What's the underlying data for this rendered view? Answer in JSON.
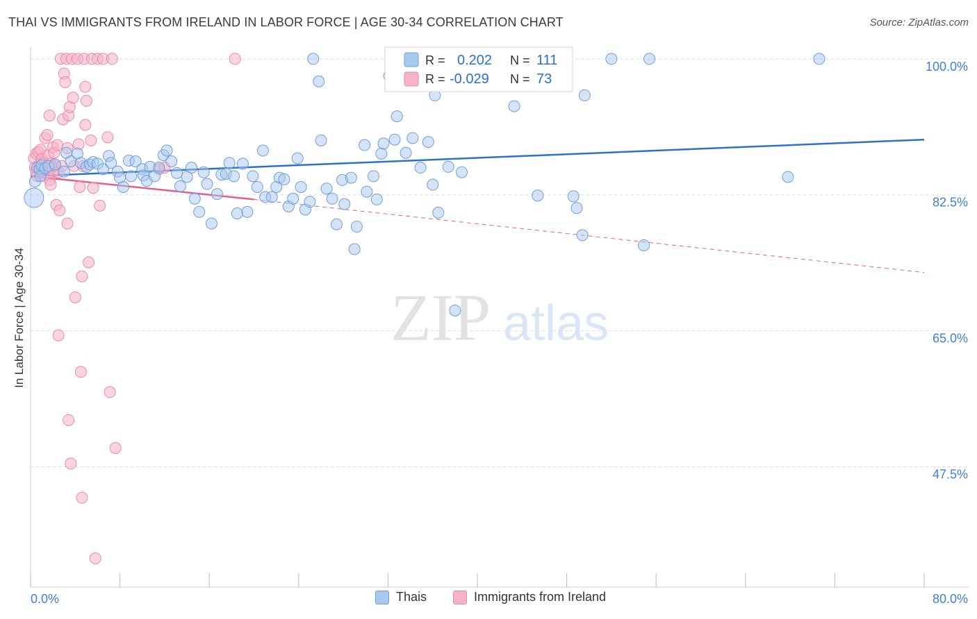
{
  "title": "THAI VS IMMIGRANTS FROM IRELAND IN LABOR FORCE | AGE 30-34 CORRELATION CHART",
  "source": "Source: ZipAtlas.com",
  "watermark": {
    "zip": "ZIP",
    "atlas": "atlas"
  },
  "stats": [
    {
      "r_label": "R =",
      "r": "0.202",
      "n_label": "N =",
      "n": "111"
    },
    {
      "r_label": "R =",
      "r": "-0.029",
      "n_label": "N =",
      "n": "73"
    }
  ],
  "colors": {
    "blue_fill": "#a9c8f0",
    "blue_stroke": "#6e9fd9",
    "blue_line": "#2b6fd0",
    "pink_fill": "#f6b3c8",
    "pink_stroke": "#e88aa9",
    "pink_line": "#e0608d",
    "tick_text": "#3d7fd6",
    "grid": "#dddddd"
  },
  "chart_data": {
    "type": "scatter",
    "title": "THAI VS IMMIGRANTS FROM IRELAND IN LABOR FORCE | AGE 30-34 CORRELATION CHART",
    "xlabel": "",
    "ylabel": "In Labor Force | Age 30-34",
    "xlim": [
      0,
      80
    ],
    "ylim": [
      32,
      101.5
    ],
    "x_tick_labels": [
      "0.0%",
      "80.0%"
    ],
    "y_ticks": [
      47.5,
      65.0,
      82.5,
      100.0
    ],
    "y_tick_labels": [
      "47.5%",
      "65.0%",
      "82.5%",
      "100.0%"
    ],
    "grid": true,
    "legend_position": "bottom-center",
    "series": [
      {
        "name": "Thais",
        "r": 0.202,
        "n": 111,
        "trend": {
          "x": [
            0,
            80
          ],
          "y": [
            84.9,
            89.6
          ]
        },
        "points": [
          [
            0.3,
            82.1
          ],
          [
            0.4,
            84.2
          ],
          [
            0.6,
            86.0
          ],
          [
            0.8,
            85.8
          ],
          [
            0.9,
            84.9
          ],
          [
            1.0,
            86.3
          ],
          [
            1.3,
            85.9
          ],
          [
            1.6,
            86.2
          ],
          [
            2.2,
            86.4
          ],
          [
            3.0,
            85.5
          ],
          [
            3.2,
            87.9
          ],
          [
            3.6,
            86.8
          ],
          [
            4.2,
            87.8
          ],
          [
            4.5,
            86.6
          ],
          [
            5.0,
            86.1
          ],
          [
            5.3,
            86.4
          ],
          [
            5.6,
            86.7
          ],
          [
            6.0,
            86.5
          ],
          [
            6.5,
            85.8
          ],
          [
            7.0,
            87.5
          ],
          [
            7.2,
            86.6
          ],
          [
            7.8,
            85.5
          ],
          [
            8.0,
            84.7
          ],
          [
            8.3,
            83.5
          ],
          [
            8.8,
            86.9
          ],
          [
            9.0,
            84.9
          ],
          [
            9.4,
            86.8
          ],
          [
            10.0,
            85.8
          ],
          [
            10.1,
            85.0
          ],
          [
            10.4,
            84.3
          ],
          [
            10.7,
            86.1
          ],
          [
            11.1,
            84.9
          ],
          [
            11.5,
            86.0
          ],
          [
            11.9,
            87.6
          ],
          [
            12.2,
            88.2
          ],
          [
            12.6,
            86.8
          ],
          [
            13.1,
            85.3
          ],
          [
            13.4,
            83.6
          ],
          [
            14.0,
            84.8
          ],
          [
            14.4,
            86.0
          ],
          [
            14.7,
            82.0
          ],
          [
            15.1,
            80.3
          ],
          [
            15.5,
            85.4
          ],
          [
            15.8,
            83.9
          ],
          [
            16.2,
            78.8
          ],
          [
            16.7,
            82.6
          ],
          [
            17.1,
            85.1
          ],
          [
            17.5,
            85.2
          ],
          [
            17.8,
            86.6
          ],
          [
            18.2,
            84.9
          ],
          [
            18.5,
            80.1
          ],
          [
            19.0,
            86.5
          ],
          [
            19.4,
            80.3
          ],
          [
            19.9,
            84.9
          ],
          [
            20.3,
            83.5
          ],
          [
            20.8,
            88.2
          ],
          [
            21.0,
            82.2
          ],
          [
            21.6,
            82.2
          ],
          [
            22.0,
            83.5
          ],
          [
            22.3,
            84.7
          ],
          [
            22.7,
            84.5
          ],
          [
            23.1,
            81.0
          ],
          [
            23.5,
            82.0
          ],
          [
            23.9,
            87.2
          ],
          [
            24.2,
            83.5
          ],
          [
            24.6,
            80.6
          ],
          [
            25.0,
            81.6
          ],
          [
            25.3,
            100.0
          ],
          [
            25.8,
            97.1
          ],
          [
            26.0,
            89.5
          ],
          [
            26.5,
            83.3
          ],
          [
            27.0,
            82.0
          ],
          [
            27.4,
            78.7
          ],
          [
            27.9,
            84.4
          ],
          [
            28.1,
            81.3
          ],
          [
            28.7,
            84.7
          ],
          [
            29.0,
            75.5
          ],
          [
            29.2,
            78.4
          ],
          [
            29.9,
            88.9
          ],
          [
            30.1,
            82.9
          ],
          [
            30.7,
            84.9
          ],
          [
            31.0,
            81.9
          ],
          [
            31.4,
            87.8
          ],
          [
            31.6,
            89.1
          ],
          [
            32.1,
            97.8
          ],
          [
            32.6,
            89.6
          ],
          [
            32.8,
            92.6
          ],
          [
            33.6,
            87.9
          ],
          [
            34.2,
            89.8
          ],
          [
            34.9,
            86.0
          ],
          [
            35.6,
            89.3
          ],
          [
            36.0,
            83.8
          ],
          [
            36.2,
            95.3
          ],
          [
            36.5,
            80.2
          ],
          [
            37.4,
            86.1
          ],
          [
            38.0,
            67.6
          ],
          [
            38.6,
            85.4
          ],
          [
            39.4,
            100.0
          ],
          [
            41.0,
            100.0
          ],
          [
            43.3,
            93.9
          ],
          [
            45.4,
            82.4
          ],
          [
            47.2,
            100.0
          ],
          [
            48.6,
            82.3
          ],
          [
            48.9,
            80.8
          ],
          [
            49.4,
            77.3
          ],
          [
            49.6,
            95.3
          ],
          [
            52.0,
            100.0
          ],
          [
            54.9,
            76.0
          ],
          [
            55.4,
            100.0
          ],
          [
            67.8,
            84.8
          ],
          [
            70.6,
            100.0
          ]
        ]
      },
      {
        "name": "Immigrants from Ireland",
        "r": -0.029,
        "n": 73,
        "trend": {
          "x": [
            0,
            20
          ],
          "y": [
            84.9,
            81.9
          ]
        },
        "trend_extension": {
          "x": [
            20,
            80
          ],
          "y": [
            81.9,
            72.5
          ]
        },
        "points": [
          [
            0.3,
            87.2
          ],
          [
            0.4,
            86.0
          ],
          [
            0.5,
            85.5
          ],
          [
            0.5,
            87.8
          ],
          [
            0.6,
            84.9
          ],
          [
            0.7,
            88.0
          ],
          [
            0.8,
            86.4
          ],
          [
            0.9,
            85.9
          ],
          [
            0.9,
            88.3
          ],
          [
            1.0,
            87.1
          ],
          [
            1.1,
            85.0
          ],
          [
            1.2,
            86.6
          ],
          [
            1.3,
            89.8
          ],
          [
            1.3,
            86.0
          ],
          [
            1.4,
            85.8
          ],
          [
            1.5,
            90.2
          ],
          [
            1.6,
            87.6
          ],
          [
            1.7,
            84.4
          ],
          [
            1.7,
            92.7
          ],
          [
            1.8,
            86.5
          ],
          [
            1.8,
            83.8
          ],
          [
            1.9,
            86.0
          ],
          [
            2.0,
            88.6
          ],
          [
            2.0,
            85.5
          ],
          [
            2.1,
            87.9
          ],
          [
            2.2,
            86.2
          ],
          [
            2.3,
            81.2
          ],
          [
            2.4,
            88.9
          ],
          [
            2.5,
            85.4
          ],
          [
            2.5,
            64.4
          ],
          [
            2.6,
            80.5
          ],
          [
            2.7,
            100.0
          ],
          [
            2.8,
            86.2
          ],
          [
            2.9,
            92.2
          ],
          [
            3.0,
            98.1
          ],
          [
            3.1,
            97.0
          ],
          [
            3.2,
            100.0
          ],
          [
            3.3,
            78.8
          ],
          [
            3.3,
            88.5
          ],
          [
            3.4,
            92.7
          ],
          [
            3.4,
            53.5
          ],
          [
            3.5,
            93.8
          ],
          [
            3.6,
            47.9
          ],
          [
            3.7,
            100.0
          ],
          [
            3.8,
            95.0
          ],
          [
            3.9,
            86.2
          ],
          [
            4.0,
            69.3
          ],
          [
            4.2,
            100.0
          ],
          [
            4.3,
            89.0
          ],
          [
            4.4,
            83.5
          ],
          [
            4.5,
            59.7
          ],
          [
            4.6,
            72.0
          ],
          [
            4.6,
            43.5
          ],
          [
            4.7,
            86.2
          ],
          [
            4.8,
            100.0
          ],
          [
            4.9,
            96.4
          ],
          [
            4.9,
            91.5
          ],
          [
            5.0,
            94.6
          ],
          [
            5.2,
            73.8
          ],
          [
            5.4,
            89.5
          ],
          [
            5.5,
            100.0
          ],
          [
            5.6,
            83.4
          ],
          [
            5.8,
            35.7
          ],
          [
            6.0,
            100.0
          ],
          [
            6.2,
            81.1
          ],
          [
            6.5,
            100.0
          ],
          [
            6.9,
            89.9
          ],
          [
            7.1,
            57.1
          ],
          [
            7.3,
            100.0
          ],
          [
            7.6,
            49.9
          ],
          [
            11.5,
            85.8
          ],
          [
            18.3,
            100.0
          ],
          [
            12.0,
            86.0
          ]
        ]
      }
    ]
  },
  "legend": [
    {
      "label": "Thais"
    },
    {
      "label": "Immigrants from Ireland"
    }
  ]
}
